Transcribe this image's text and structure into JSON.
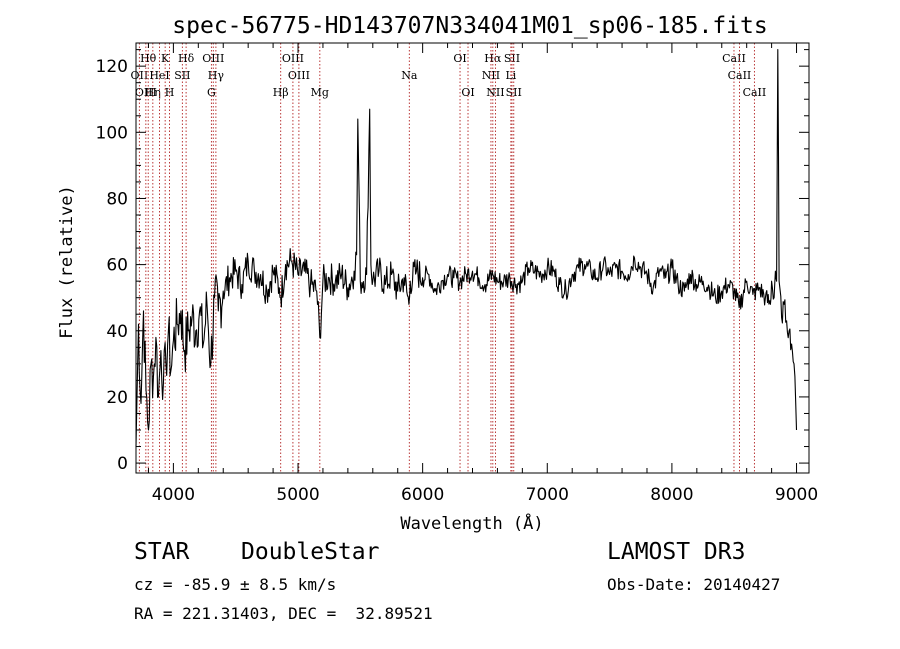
{
  "chart_data": {
    "type": "line",
    "title": "spec-56775-HD143707N334041M01_sp06-185.fits",
    "xlabel": "Wavelength (Å)",
    "ylabel": "Flux (relative)",
    "xlim": [
      3700,
      9100
    ],
    "ylim": [
      -3,
      127
    ],
    "xticks": [
      4000,
      5000,
      6000,
      7000,
      8000,
      9000
    ],
    "yticks": [
      0,
      20,
      40,
      60,
      80,
      100,
      120
    ],
    "series": [
      {
        "name": "flux",
        "x": [
          3700,
          3720,
          3740,
          3760,
          3780,
          3800,
          3820,
          3840,
          3860,
          3880,
          3900,
          3920,
          3940,
          3960,
          3980,
          4000,
          4030,
          4060,
          4090,
          4120,
          4150,
          4180,
          4210,
          4240,
          4270,
          4300,
          4330,
          4360,
          4400,
          4450,
          4500,
          4550,
          4600,
          4650,
          4700,
          4750,
          4800,
          4850,
          4861,
          4900,
          4950,
          5000,
          5050,
          5100,
          5150,
          5175,
          5200,
          5250,
          5300,
          5350,
          5400,
          5450,
          5470,
          5480,
          5500,
          5550,
          5575,
          5585,
          5600,
          5650,
          5700,
          5750,
          5800,
          5850,
          5890,
          5900,
          5950,
          6000,
          6050,
          6100,
          6150,
          6200,
          6250,
          6300,
          6350,
          6400,
          6450,
          6500,
          6563,
          6600,
          6650,
          6700,
          6750,
          6800,
          6850,
          6900,
          6950,
          7000,
          7050,
          7100,
          7150,
          7200,
          7250,
          7300,
          7350,
          7400,
          7450,
          7500,
          7550,
          7600,
          7650,
          7700,
          7750,
          7800,
          7850,
          7900,
          7950,
          8000,
          8050,
          8100,
          8150,
          8200,
          8250,
          8300,
          8350,
          8400,
          8450,
          8500,
          8540,
          8600,
          8650,
          8700,
          8750,
          8790,
          8800,
          8820,
          8830,
          8840,
          8850,
          8860,
          8880,
          8900,
          8920,
          8940,
          8960,
          8980,
          9000
        ],
        "y": [
          5,
          42,
          18,
          46,
          22,
          10,
          30,
          26,
          38,
          20,
          34,
          24,
          30,
          40,
          28,
          37,
          42,
          46,
          34,
          40,
          44,
          40,
          46,
          36,
          48,
          30,
          50,
          46,
          52,
          56,
          58,
          54,
          61,
          58,
          57,
          52,
          58,
          53,
          50,
          60,
          61,
          57,
          58,
          54,
          52,
          38,
          55,
          56,
          55,
          57,
          53,
          58,
          63,
          104,
          55,
          57,
          107,
          60,
          55,
          58,
          54,
          57,
          52,
          56,
          48,
          55,
          58,
          56,
          57,
          52,
          55,
          57,
          56,
          55,
          57,
          58,
          56,
          54,
          57,
          55,
          55,
          56,
          54,
          55,
          59,
          58,
          57,
          59,
          58,
          54,
          52,
          57,
          59,
          60,
          58,
          56,
          60,
          57,
          59,
          58,
          57,
          62,
          59,
          57,
          53,
          58,
          56,
          59,
          54,
          52,
          57,
          54,
          55,
          53,
          50,
          52,
          54,
          52,
          47,
          55,
          51,
          53,
          50,
          48,
          55,
          50,
          58,
          55,
          125,
          55,
          44,
          48,
          43,
          40,
          36,
          30,
          10
        ]
      }
    ],
    "lines": [
      {
        "label": "OII",
        "wl": 3727,
        "row": 2
      },
      {
        "label": "Hθ",
        "wl": 3798,
        "row": 1
      },
      {
        "label": "OIII",
        "wl": 3779,
        "row": 3
      },
      {
        "label": "Hη",
        "wl": 3835,
        "row": 3
      },
      {
        "label": "HeI",
        "wl": 3889,
        "row": 2
      },
      {
        "label": "K",
        "wl": 3934,
        "row": 1
      },
      {
        "label": "H",
        "wl": 3969,
        "row": 3
      },
      {
        "label": "SII",
        "wl": 4072,
        "row": 2
      },
      {
        "label": "Hδ",
        "wl": 4102,
        "row": 1
      },
      {
        "label": "OIII",
        "wl": 4320,
        "row": 1
      },
      {
        "label": "Hγ",
        "wl": 4341,
        "row": 2
      },
      {
        "label": "G",
        "wl": 4305,
        "row": 3
      },
      {
        "label": "Hβ",
        "wl": 4861,
        "row": 3
      },
      {
        "label": "OIII",
        "wl": 4959,
        "row": 1
      },
      {
        "label": "OIII",
        "wl": 5007,
        "row": 2
      },
      {
        "label": "Mg",
        "wl": 5175,
        "row": 3
      },
      {
        "label": "Na",
        "wl": 5893,
        "row": 2
      },
      {
        "label": "OI",
        "wl": 6300,
        "row": 1
      },
      {
        "label": "OI",
        "wl": 6364,
        "row": 3
      },
      {
        "label": "Hα",
        "wl": 6563,
        "row": 1
      },
      {
        "label": "NII",
        "wl": 6548,
        "row": 2
      },
      {
        "label": "NII",
        "wl": 6584,
        "row": 3
      },
      {
        "label": "SII",
        "wl": 6717,
        "row": 1
      },
      {
        "label": "SII",
        "wl": 6731,
        "row": 3
      },
      {
        "label": "Li",
        "wl": 6708,
        "row": 2
      },
      {
        "label": "CaII",
        "wl": 8498,
        "row": 1
      },
      {
        "label": "CaII",
        "wl": 8542,
        "row": 2
      },
      {
        "label": "CaII",
        "wl": 8662,
        "row": 3
      }
    ]
  },
  "info": {
    "class": "STAR",
    "subclass": "DoubleStar",
    "survey": "LAMOST DR3",
    "cz": "cz = -85.9 ± 8.5 km/s",
    "obs_date": "Obs-Date: 20140427",
    "radec": "RA = 221.31403, DEC =  32.89521"
  }
}
